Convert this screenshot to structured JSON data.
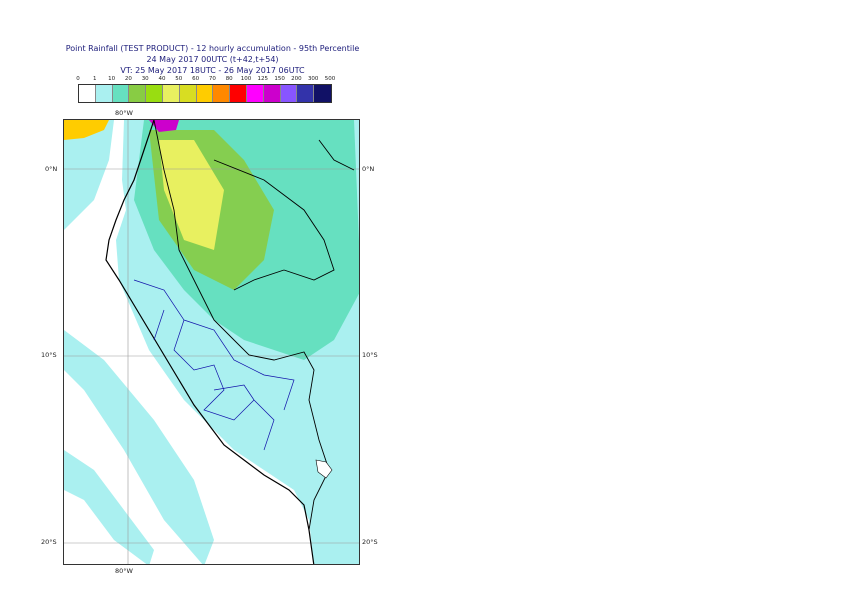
{
  "title": {
    "line1": "Point Rainfall (TEST PRODUCT) - 12 hourly accumulation - 95th Percentile",
    "line2": "24 May 2017 00UTC (t+42,t+54)",
    "line3": "VT: 25 May 2017 18UTC - 26 May 2017 06UTC"
  },
  "legend": {
    "ticks": [
      "0",
      "1",
      "10",
      "20",
      "30",
      "40",
      "50",
      "60",
      "70",
      "80",
      "100",
      "125",
      "150",
      "200",
      "300",
      "500"
    ],
    "colors": [
      "#ffffff",
      "#aaf0f0",
      "#66e0c0",
      "#88cc44",
      "#99dd11",
      "#e8f060",
      "#d8dd22",
      "#ffcc00",
      "#ff8800",
      "#ff0000",
      "#ff00ff",
      "#cc00cc",
      "#8855ff",
      "#3333aa",
      "#111166"
    ]
  },
  "axes": {
    "lon_top": "80°W",
    "lon_bottom": "80°W",
    "lat": [
      "0°N",
      "10°S",
      "20°S"
    ]
  }
}
